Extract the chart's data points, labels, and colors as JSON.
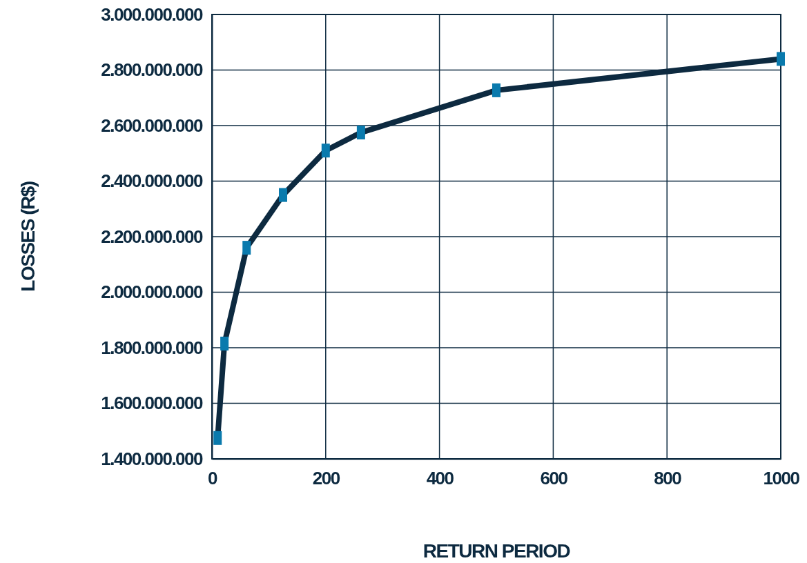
{
  "chart_data": {
    "type": "line",
    "xlabel": "RETURN PERIOD",
    "ylabel": "LOSSES (R$)",
    "x": [
      10,
      22,
      61,
      125,
      200,
      262,
      500,
      1000
    ],
    "series": [
      {
        "color": "#0d2a40",
        "values": [
          1475000000,
          1815000000,
          2160000000,
          2350000000,
          2510000000,
          2575000000,
          2727000000,
          2840000000
        ]
      }
    ],
    "xlim": [
      0,
      1000
    ],
    "xticks": [
      0,
      200,
      400,
      600,
      800,
      1000
    ],
    "ylim": [
      1400000000,
      3000000000
    ],
    "yticks": [
      {
        "value": 1400000000,
        "label": "1.400.000.000"
      },
      {
        "value": 1600000000,
        "label": "1.600.000.000"
      },
      {
        "value": 1800000000,
        "label": "1.800.000.000"
      },
      {
        "value": 2000000000,
        "label": "2.000.000.000"
      },
      {
        "value": 2200000000,
        "label": "2.200.000.000"
      },
      {
        "value": 2400000000,
        "label": "2.400.000.000"
      },
      {
        "value": 2600000000,
        "label": "2.600.000.000"
      },
      {
        "value": 2800000000,
        "label": "2.800.000.000"
      },
      {
        "value": 3000000000,
        "label": "3.000.000.000"
      }
    ],
    "grid": true,
    "marker": "square",
    "line_style": "solid"
  }
}
